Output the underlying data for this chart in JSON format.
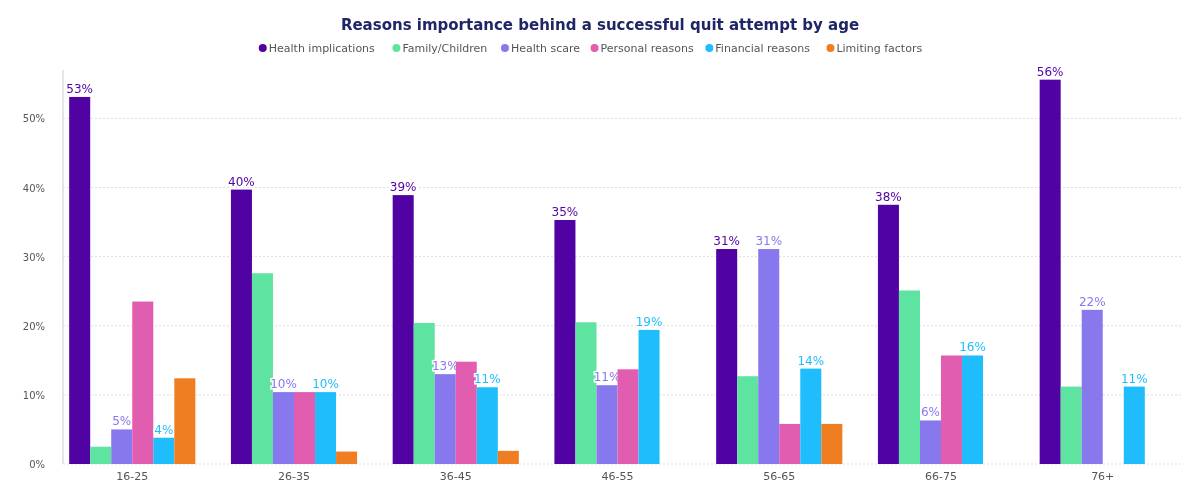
{
  "chart_data": {
    "type": "bar",
    "title": "Reasons importance behind a successful quit attempt by age",
    "categories": [
      "16-25",
      "26-35",
      "36-45",
      "46-55",
      "56-65",
      "66-75",
      "76+"
    ],
    "series": [
      {
        "name": "Health implications",
        "color": "#5002a3",
        "values": [
          53.1,
          39.7,
          38.9,
          35.3,
          31.1,
          37.5,
          55.6
        ],
        "value_labels": [
          "53%",
          "40%",
          "39%",
          "35%",
          "31%",
          "38%",
          "56%"
        ]
      },
      {
        "name": "Family/Children",
        "color": "#5fe3a1",
        "values": [
          2.5,
          27.6,
          20.4,
          20.5,
          12.7,
          25.1,
          11.2
        ]
      },
      {
        "name": "Health scare",
        "color": "#8878ee",
        "values": [
          5.0,
          10.4,
          13.0,
          11.4,
          31.1,
          6.3,
          22.3
        ],
        "value_labels": [
          "5%",
          "10%",
          "13%",
          "11%",
          "31%",
          "6%",
          "22%"
        ]
      },
      {
        "name": "Personal reasons",
        "color": "#e05db0",
        "values": [
          23.5,
          10.4,
          14.8,
          13.7,
          5.8,
          15.7,
          null
        ]
      },
      {
        "name": "Financial reasons",
        "color": "#20bdfd",
        "values": [
          3.8,
          10.4,
          11.1,
          19.4,
          13.8,
          15.7,
          11.2
        ],
        "value_labels": [
          "4%",
          "10%",
          "11%",
          "19%",
          "14%",
          "16%",
          "11%"
        ]
      },
      {
        "name": "Limiting factors",
        "color": "#ef7e22",
        "values": [
          12.4,
          1.8,
          1.9,
          null,
          5.8,
          null,
          null
        ]
      }
    ],
    "ylim": [
      0,
      57
    ],
    "yticks": [
      {
        "value": 0,
        "label": "0%"
      },
      {
        "value": 10,
        "label": "10%"
      },
      {
        "value": 20,
        "label": "20%"
      },
      {
        "value": 30,
        "label": "30%"
      },
      {
        "value": 40,
        "label": "40%"
      },
      {
        "value": 50,
        "label": "50%"
      }
    ],
    "grid": "y",
    "legend": "top"
  }
}
